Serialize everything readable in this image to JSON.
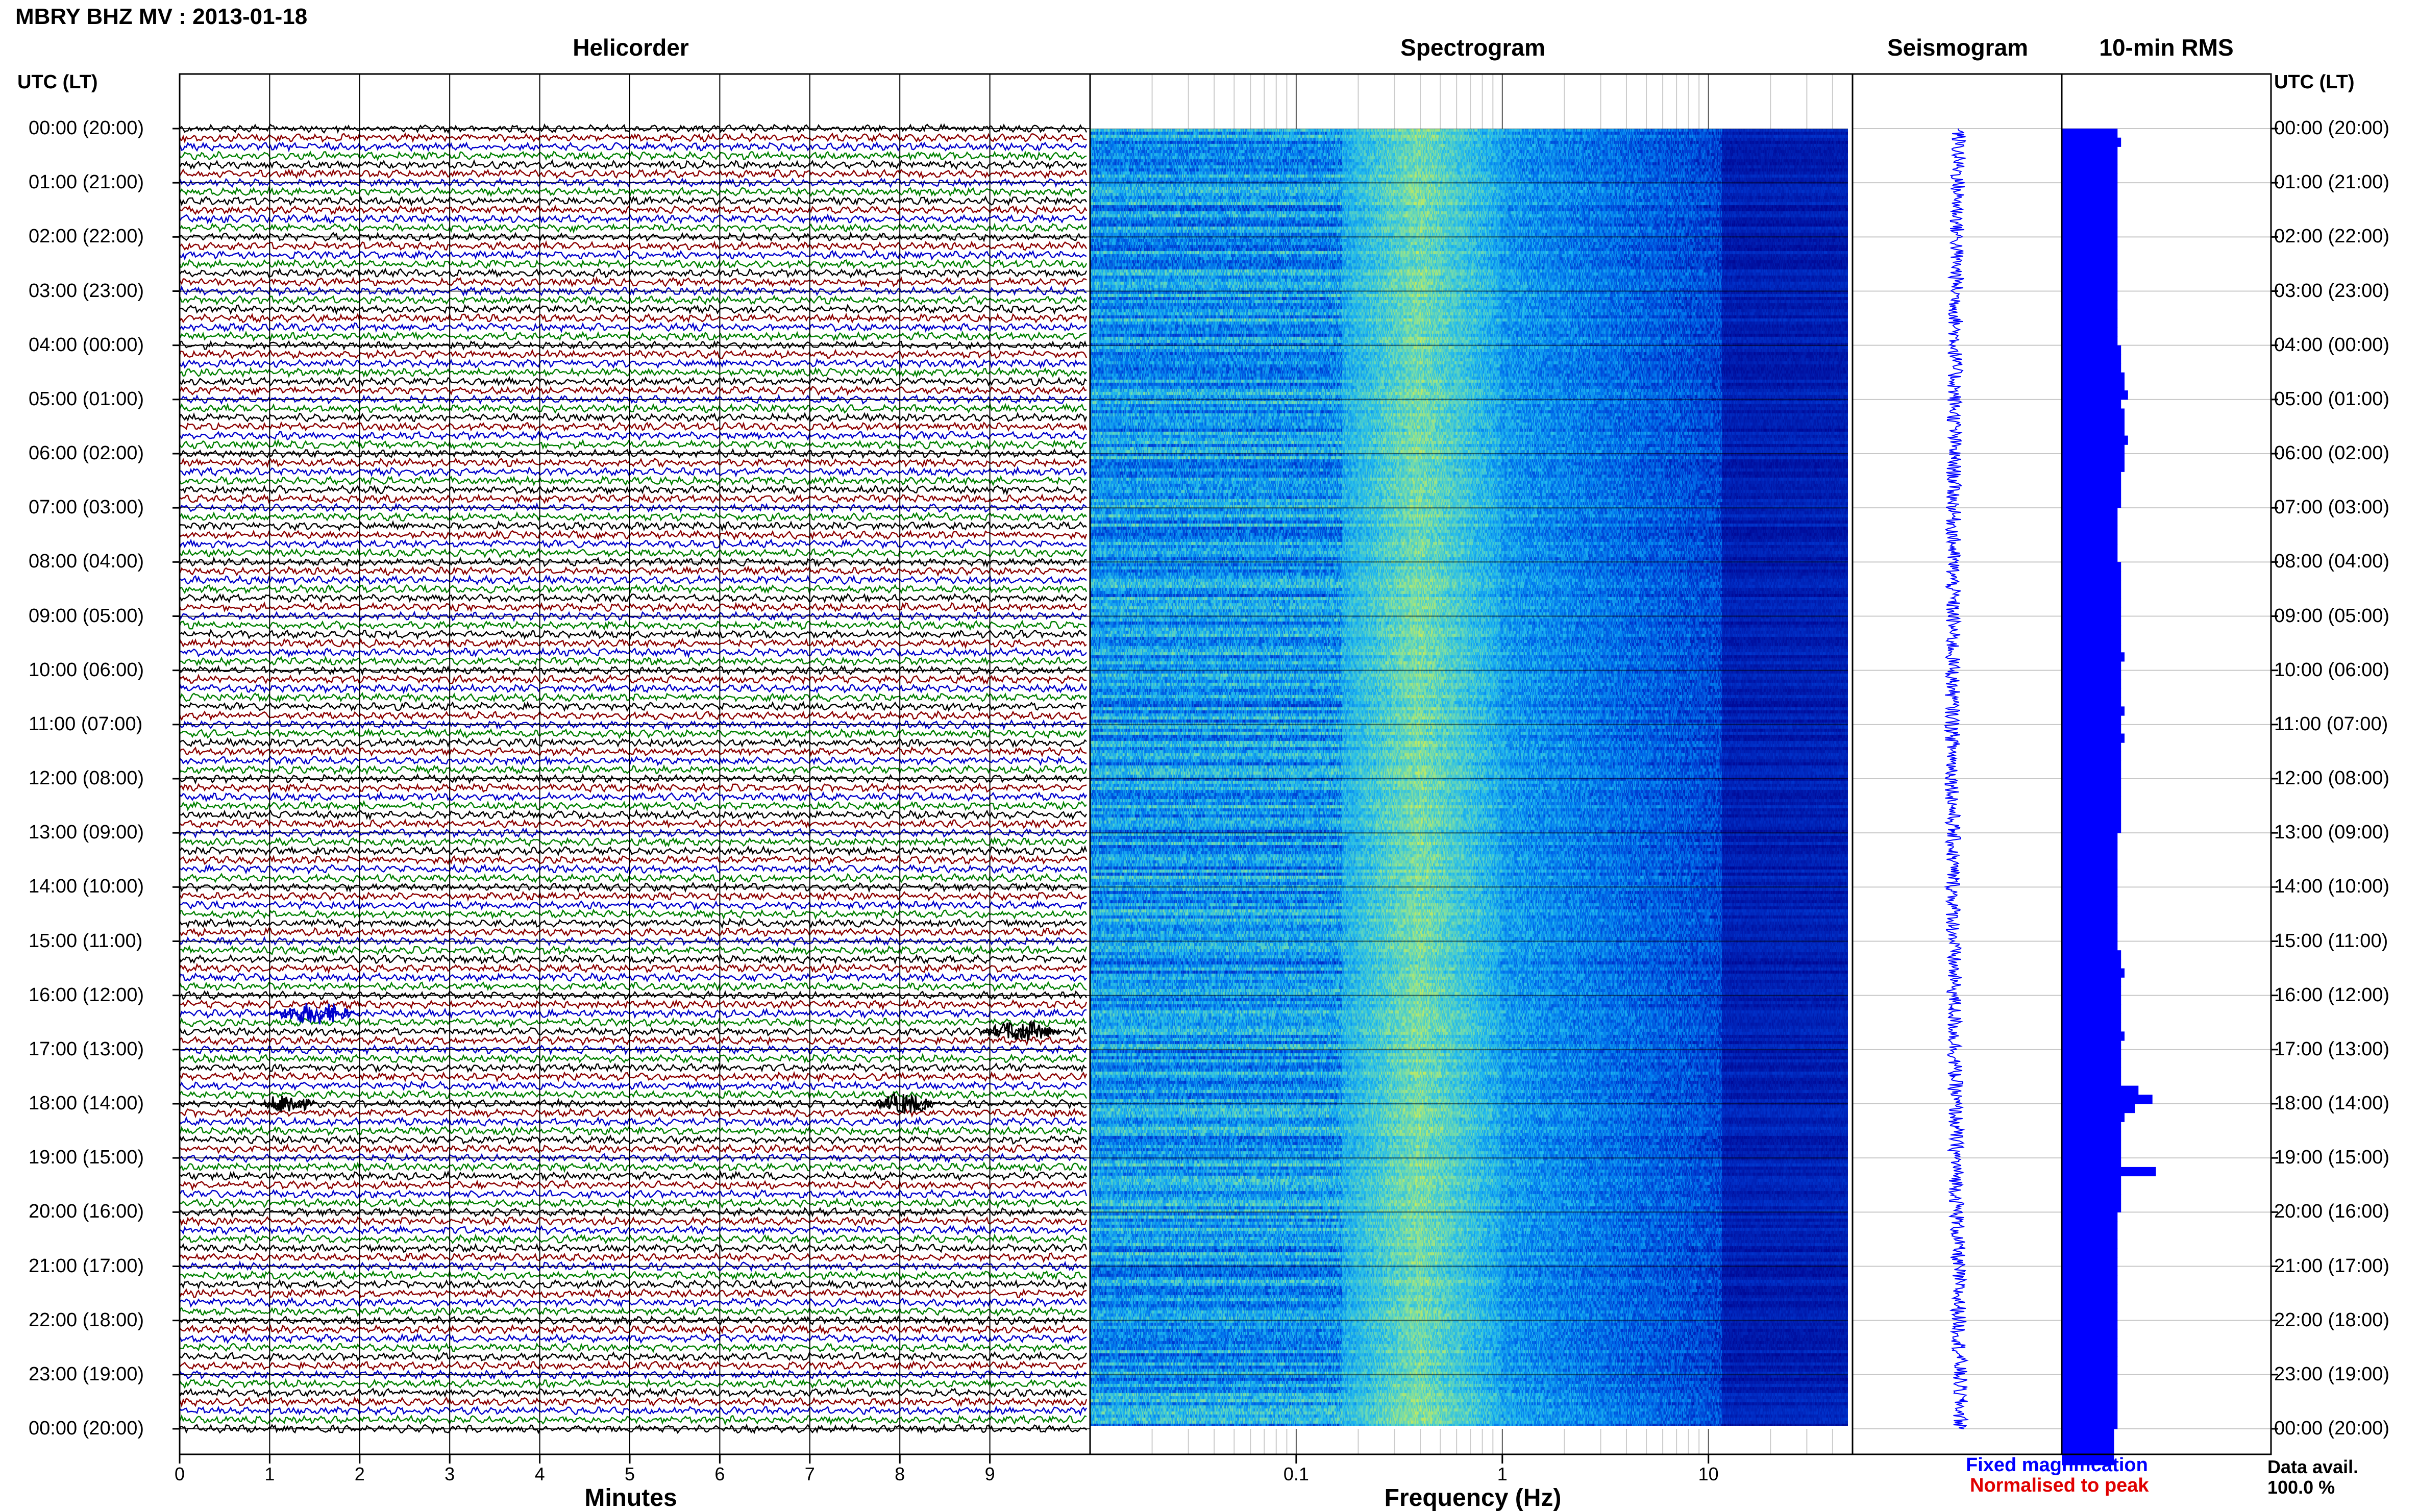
{
  "title": "MBRY BHZ MV : 2013-01-18",
  "panels": {
    "helicorder": "Helicorder",
    "spectrogram": "Spectrogram",
    "seismogram": "Seismogram",
    "rms": "10-min RMS"
  },
  "time_header": "UTC (LT)",
  "time_labels": [
    "00:00 (20:00)",
    "01:00 (21:00)",
    "02:00 (22:00)",
    "03:00 (23:00)",
    "04:00 (00:00)",
    "05:00 (01:00)",
    "06:00 (02:00)",
    "07:00 (03:00)",
    "08:00 (04:00)",
    "09:00 (05:00)",
    "10:00 (06:00)",
    "11:00 (07:00)",
    "12:00 (08:00)",
    "13:00 (09:00)",
    "14:00 (10:00)",
    "15:00 (11:00)",
    "16:00 (12:00)",
    "17:00 (13:00)",
    "18:00 (14:00)",
    "19:00 (15:00)",
    "20:00 (16:00)",
    "21:00 (17:00)",
    "22:00 (18:00)",
    "23:00 (19:00)",
    "00:00 (20:00)"
  ],
  "legend": {
    "fixed": "Fixed magnification",
    "normalised": "Normalised to peak",
    "fixed_color": "#0000ff",
    "normalised_color": "#e00000"
  },
  "availability": {
    "label": "Data avail.",
    "value": "100.0 %"
  },
  "chart_data": [
    {
      "type": "line",
      "name": "helicorder",
      "title": "Helicorder",
      "xlabel": "Minutes",
      "xlim": [
        0,
        10
      ],
      "x_ticks": [
        "0",
        "1",
        "2",
        "3",
        "4",
        "5",
        "6",
        "7",
        "8",
        "9"
      ],
      "rows_per_hour": 6,
      "trace_colors": [
        "#000000",
        "#8b0000",
        "#0000cc",
        "#008000"
      ],
      "events": [
        {
          "hour": 16,
          "row": 2,
          "minute_start": 1.0,
          "minute_end": 2.0
        },
        {
          "hour": 16,
          "row": 4,
          "minute_start": 8.9,
          "minute_end": 9.8
        },
        {
          "hour": 18,
          "row": 0,
          "minute_start": 0.9,
          "minute_end": 1.5
        },
        {
          "hour": 18,
          "row": 0,
          "minute_start": 7.7,
          "minute_end": 8.4
        }
      ]
    },
    {
      "type": "heatmap",
      "name": "spectrogram",
      "title": "Spectrogram",
      "xlabel": "Frequency (Hz)",
      "xscale": "log",
      "xlim": [
        0.01,
        50
      ],
      "x_ticks": [
        "0.1",
        "1",
        "10"
      ],
      "colormap": [
        "#00008b",
        "#0033cc",
        "#0077ee",
        "#22bbee",
        "#77ddaa",
        "#ddee44"
      ],
      "peak_band_hz": [
        0.2,
        0.8
      ]
    },
    {
      "type": "line",
      "name": "seismogram",
      "title": "Seismogram",
      "orientation": "vertical"
    },
    {
      "type": "bar",
      "name": "rms",
      "title": "10-min RMS",
      "orientation": "horizontal",
      "bins_per_hour": 6,
      "values": [
        0.16,
        0.17,
        0.16,
        0.16,
        0.16,
        0.16,
        0.16,
        0.16,
        0.16,
        0.16,
        0.16,
        0.16,
        0.16,
        0.16,
        0.16,
        0.16,
        0.16,
        0.16,
        0.16,
        0.16,
        0.16,
        0.16,
        0.16,
        0.16,
        0.17,
        0.17,
        0.17,
        0.18,
        0.18,
        0.19,
        0.17,
        0.18,
        0.18,
        0.18,
        0.19,
        0.18,
        0.18,
        0.18,
        0.17,
        0.17,
        0.17,
        0.17,
        0.16,
        0.16,
        0.16,
        0.16,
        0.16,
        0.16,
        0.17,
        0.17,
        0.17,
        0.17,
        0.17,
        0.17,
        0.17,
        0.17,
        0.17,
        0.17,
        0.18,
        0.17,
        0.17,
        0.17,
        0.17,
        0.17,
        0.18,
        0.17,
        0.17,
        0.18,
        0.17,
        0.17,
        0.17,
        0.17,
        0.17,
        0.17,
        0.17,
        0.17,
        0.17,
        0.17,
        0.16,
        0.16,
        0.16,
        0.16,
        0.16,
        0.16,
        0.16,
        0.16,
        0.16,
        0.16,
        0.16,
        0.16,
        0.16,
        0.17,
        0.17,
        0.18,
        0.17,
        0.17,
        0.17,
        0.17,
        0.17,
        0.17,
        0.18,
        0.17,
        0.17,
        0.17,
        0.17,
        0.17,
        0.22,
        0.26,
        0.21,
        0.18,
        0.17,
        0.17,
        0.17,
        0.17,
        0.17,
        0.27,
        0.17,
        0.17,
        0.17,
        0.17,
        0.16,
        0.16,
        0.16,
        0.16,
        0.16,
        0.16,
        0.16,
        0.16,
        0.16,
        0.16,
        0.16,
        0.16,
        0.16,
        0.16,
        0.16,
        0.16,
        0.16,
        0.16,
        0.16,
        0.16,
        0.16,
        0.16,
        0.16,
        0.16,
        0.15,
        0.15,
        0.15,
        0.15
      ]
    }
  ]
}
